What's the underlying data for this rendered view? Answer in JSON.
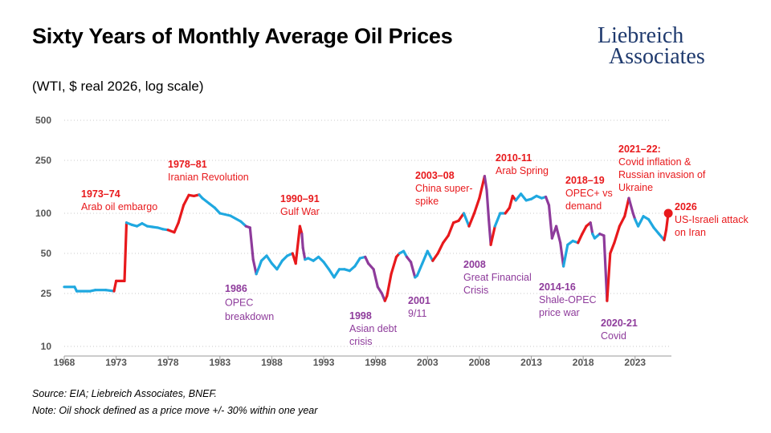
{
  "header": {
    "title": "Sixty Years of Monthly Average Oil Prices",
    "subtitle": "(WTI, $ real 2026, log scale)"
  },
  "logo": {
    "line1": "Liebreich",
    "line2": "Associates",
    "color": "#1f3a6e"
  },
  "footnotes": {
    "source": "Source: EIA; Liebreich Associates, BNEF.",
    "note": "Note: Oil shock defined as a price move +/- 30% within one year"
  },
  "colors": {
    "normal": "#1fa8e0",
    "shock_up": "#e8191c",
    "shock_down": "#8e3b9b",
    "endpoint": "#e8191c"
  },
  "chart_data": {
    "type": "line",
    "title": "Sixty Years of Monthly Average Oil Prices",
    "subtitle": "(WTI, $ real 2026, log scale)",
    "y_scale": "log",
    "ylim": [
      10,
      500
    ],
    "xlim": [
      1968,
      2026.5
    ],
    "y_ticks": [
      10,
      25,
      50,
      100,
      250,
      500
    ],
    "x_ticks": [
      1968,
      1973,
      1978,
      1983,
      1988,
      1993,
      1998,
      2003,
      2008,
      2013,
      2018,
      2023
    ],
    "grid": "horizontal dotted",
    "series_points": [
      [
        1968.0,
        28,
        "normal"
      ],
      [
        1969.0,
        28,
        "normal"
      ],
      [
        1969.2,
        26,
        "normal"
      ],
      [
        1970.5,
        26,
        "normal"
      ],
      [
        1971.0,
        26.5,
        "normal"
      ],
      [
        1972.0,
        26.5,
        "normal"
      ],
      [
        1972.8,
        26,
        "normal"
      ],
      [
        1973.0,
        31,
        "up"
      ],
      [
        1973.8,
        31,
        "up"
      ],
      [
        1974.0,
        85,
        "up"
      ],
      [
        1974.5,
        82,
        "normal"
      ],
      [
        1975.0,
        80,
        "normal"
      ],
      [
        1975.5,
        84,
        "normal"
      ],
      [
        1976.0,
        80,
        "normal"
      ],
      [
        1976.5,
        79,
        "normal"
      ],
      [
        1977.0,
        78,
        "normal"
      ],
      [
        1977.5,
        76,
        "normal"
      ],
      [
        1978.0,
        75,
        "normal"
      ],
      [
        1978.6,
        72,
        "up"
      ],
      [
        1979.0,
        85,
        "up"
      ],
      [
        1979.5,
        115,
        "up"
      ],
      [
        1980.0,
        137,
        "up"
      ],
      [
        1980.5,
        135,
        "up"
      ],
      [
        1981.0,
        138,
        "up"
      ],
      [
        1981.3,
        130,
        "normal"
      ],
      [
        1982.0,
        118,
        "normal"
      ],
      [
        1982.5,
        110,
        "normal"
      ],
      [
        1983.0,
        100,
        "normal"
      ],
      [
        1984.0,
        96,
        "normal"
      ],
      [
        1985.0,
        87,
        "normal"
      ],
      [
        1985.5,
        80,
        "normal"
      ],
      [
        1985.9,
        78,
        "down"
      ],
      [
        1986.2,
        45,
        "down"
      ],
      [
        1986.5,
        35,
        "down"
      ],
      [
        1986.8,
        40,
        "normal"
      ],
      [
        1987.0,
        44,
        "normal"
      ],
      [
        1987.5,
        48,
        "normal"
      ],
      [
        1988.0,
        42,
        "normal"
      ],
      [
        1988.5,
        38,
        "normal"
      ],
      [
        1989.0,
        44,
        "normal"
      ],
      [
        1989.5,
        48,
        "normal"
      ],
      [
        1990.0,
        50,
        "normal"
      ],
      [
        1990.3,
        42,
        "up"
      ],
      [
        1990.7,
        80,
        "up"
      ],
      [
        1990.9,
        70,
        "up"
      ],
      [
        1991.0,
        55,
        "down"
      ],
      [
        1991.2,
        45,
        "down"
      ],
      [
        1991.5,
        46,
        "normal"
      ],
      [
        1992.0,
        44,
        "normal"
      ],
      [
        1992.5,
        47,
        "normal"
      ],
      [
        1993.0,
        43,
        "normal"
      ],
      [
        1993.5,
        38,
        "normal"
      ],
      [
        1994.0,
        33,
        "normal"
      ],
      [
        1994.5,
        38,
        "normal"
      ],
      [
        1995.0,
        38,
        "normal"
      ],
      [
        1995.5,
        37,
        "normal"
      ],
      [
        1996.0,
        40,
        "normal"
      ],
      [
        1996.5,
        46,
        "normal"
      ],
      [
        1997.0,
        47,
        "normal"
      ],
      [
        1997.3,
        42,
        "down"
      ],
      [
        1997.8,
        38,
        "down"
      ],
      [
        1998.2,
        28,
        "down"
      ],
      [
        1998.6,
        25,
        "down"
      ],
      [
        1998.9,
        22,
        "down"
      ],
      [
        1999.1,
        24,
        "up"
      ],
      [
        1999.5,
        35,
        "up"
      ],
      [
        2000.0,
        47,
        "up"
      ],
      [
        2000.3,
        50,
        "up"
      ],
      [
        2000.7,
        52,
        "normal"
      ],
      [
        2001.0,
        47,
        "normal"
      ],
      [
        2001.4,
        43,
        "down"
      ],
      [
        2001.8,
        33,
        "down"
      ],
      [
        2002.0,
        34,
        "normal"
      ],
      [
        2002.5,
        42,
        "normal"
      ],
      [
        2003.0,
        52,
        "normal"
      ],
      [
        2003.5,
        44,
        "normal"
      ],
      [
        2004.0,
        50,
        "up"
      ],
      [
        2004.5,
        60,
        "up"
      ],
      [
        2005.0,
        68,
        "up"
      ],
      [
        2005.5,
        85,
        "up"
      ],
      [
        2006.0,
        88,
        "up"
      ],
      [
        2006.5,
        100,
        "up"
      ],
      [
        2007.0,
        80,
        "normal"
      ],
      [
        2007.5,
        100,
        "up"
      ],
      [
        2008.0,
        130,
        "up"
      ],
      [
        2008.5,
        190,
        "up"
      ],
      [
        2008.7,
        150,
        "down"
      ],
      [
        2008.9,
        90,
        "down"
      ],
      [
        2009.1,
        58,
        "down"
      ],
      [
        2009.5,
        80,
        "up"
      ],
      [
        2010.0,
        100,
        "normal"
      ],
      [
        2010.5,
        100,
        "normal"
      ],
      [
        2010.9,
        110,
        "up"
      ],
      [
        2011.2,
        135,
        "up"
      ],
      [
        2011.5,
        125,
        "up"
      ],
      [
        2012.0,
        140,
        "normal"
      ],
      [
        2012.5,
        125,
        "normal"
      ],
      [
        2013.0,
        128,
        "normal"
      ],
      [
        2013.5,
        135,
        "normal"
      ],
      [
        2014.0,
        130,
        "normal"
      ],
      [
        2014.4,
        133,
        "normal"
      ],
      [
        2014.7,
        115,
        "down"
      ],
      [
        2015.0,
        65,
        "down"
      ],
      [
        2015.4,
        80,
        "down"
      ],
      [
        2015.8,
        60,
        "down"
      ],
      [
        2016.1,
        40,
        "down"
      ],
      [
        2016.5,
        58,
        "normal"
      ],
      [
        2017.0,
        62,
        "normal"
      ],
      [
        2017.5,
        60,
        "normal"
      ],
      [
        2017.9,
        70,
        "up"
      ],
      [
        2018.3,
        80,
        "up"
      ],
      [
        2018.7,
        85,
        "up"
      ],
      [
        2018.9,
        70,
        "down"
      ],
      [
        2019.1,
        65,
        "normal"
      ],
      [
        2019.6,
        70,
        "normal"
      ],
      [
        2020.0,
        68,
        "down"
      ],
      [
        2020.3,
        22,
        "down"
      ],
      [
        2020.6,
        50,
        "up"
      ],
      [
        2021.0,
        60,
        "up"
      ],
      [
        2021.5,
        80,
        "up"
      ],
      [
        2022.0,
        95,
        "up"
      ],
      [
        2022.4,
        130,
        "up"
      ],
      [
        2022.8,
        100,
        "down"
      ],
      [
        2023.0,
        90,
        "down"
      ],
      [
        2023.3,
        80,
        "normal"
      ],
      [
        2023.8,
        95,
        "normal"
      ],
      [
        2024.3,
        90,
        "normal"
      ],
      [
        2024.8,
        78,
        "normal"
      ],
      [
        2025.3,
        70,
        "normal"
      ],
      [
        2025.8,
        63,
        "normal"
      ],
      [
        2026.0,
        75,
        "up"
      ],
      [
        2026.2,
        100,
        "up"
      ]
    ],
    "endpoint": [
      2026.2,
      100
    ],
    "annotations": [
      {
        "year": "1973–74",
        "text": [
          "Arab oil embargo"
        ],
        "color": "shock_up"
      },
      {
        "year": "1978–81",
        "text": [
          "Iranian Revolution"
        ],
        "color": "shock_up"
      },
      {
        "year": "1986",
        "text": [
          "OPEC",
          "breakdown"
        ],
        "color": "shock_down"
      },
      {
        "year": "1990–91",
        "text": [
          "Gulf War"
        ],
        "color": "shock_up"
      },
      {
        "year": "1998",
        "text": [
          "Asian debt",
          "crisis"
        ],
        "color": "shock_down"
      },
      {
        "year": "2001",
        "text": [
          "9/11"
        ],
        "color": "shock_down"
      },
      {
        "year": "2003–08",
        "text": [
          "China super-",
          "spike"
        ],
        "color": "shock_up"
      },
      {
        "year": "2008",
        "text": [
          "Great Financial",
          "Crisis"
        ],
        "color": "shock_down"
      },
      {
        "year": "2010-11",
        "text": [
          "Arab Spring"
        ],
        "color": "shock_up"
      },
      {
        "year": "2014-16",
        "text": [
          "Shale-OPEC",
          "price war"
        ],
        "color": "shock_down"
      },
      {
        "year": "2018–19",
        "text": [
          "OPEC+ vs",
          "demand"
        ],
        "color": "shock_up"
      },
      {
        "year": "2020-21",
        "text": [
          "Covid"
        ],
        "color": "shock_down"
      },
      {
        "year": "2021–22:",
        "text": [
          "Covid inflation &",
          "Russian invasion of",
          "Ukraine"
        ],
        "color": "shock_up"
      },
      {
        "year": "2026",
        "text": [
          "US-Israeli attack",
          "on Iran"
        ],
        "color": "shock_up"
      }
    ]
  }
}
